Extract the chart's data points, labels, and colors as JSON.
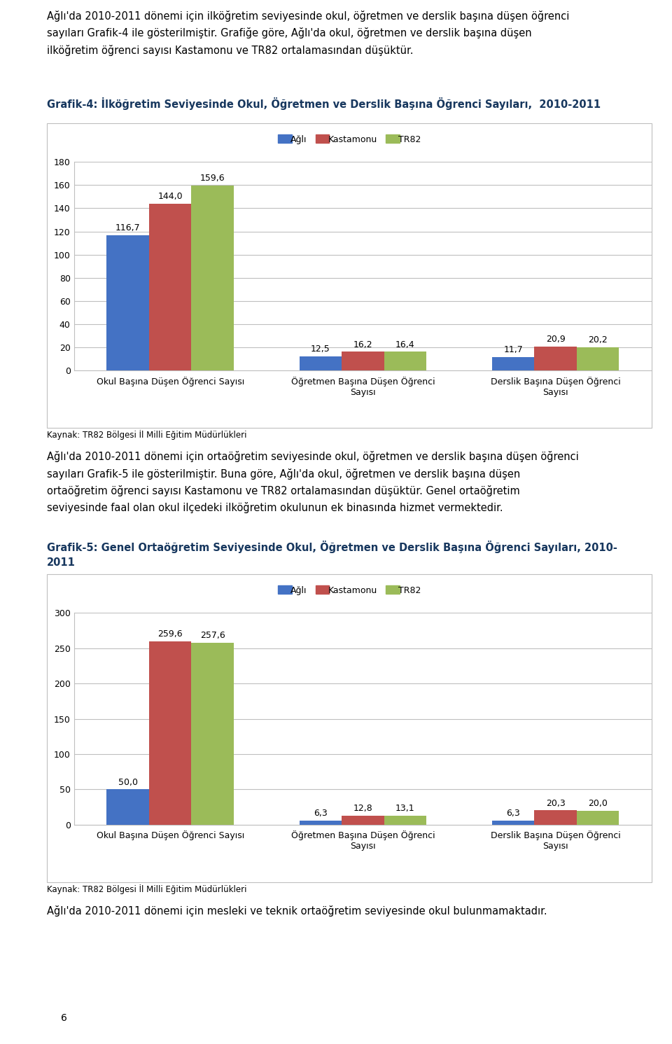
{
  "page_title_lines": "Ağlı'da 2010-2011 dönemi için ilköğretim seviyesinde okul, öğretmen ve derslik başına düşen öğrenci\nsayıları Grafik-4 ile gösterilmiştir. Grafiğe göre, Ağlı'da okul, öğretmen ve derslik başına düşen\nilköğretim öğrenci sayısı Kastamonu ve TR82 ortalamasından düşüktür.",
  "chart1_title": "Grafik-4: İlköğretim Seviyesinde Okul, Öğretmen ve Derslik Başına Öğrenci Sayıları,  2010-2011",
  "chart1_categories": [
    "Okul Başına Düşen Öğrenci Sayısı",
    "Öğretmen Başına Düşen Öğrenci\nSayısı",
    "Derslik Başına Düşen Öğrenci\nSayısı"
  ],
  "chart1_data": {
    "Ağlı": [
      116.7,
      12.5,
      11.7
    ],
    "Kastamonu": [
      144.0,
      16.2,
      20.9
    ],
    "TR82": [
      159.6,
      16.4,
      20.2
    ]
  },
  "chart1_ylim": [
    0,
    180
  ],
  "chart1_yticks": [
    0,
    20,
    40,
    60,
    80,
    100,
    120,
    140,
    160,
    180
  ],
  "chart2_title": "Grafik-5: Genel Ortaöğretim Seviyesinde Okul, Öğretmen ve Derslik Başına Öğrenci Sayıları, 2010-\n2011",
  "chart2_categories": [
    "Okul Başına Düşen Öğrenci Sayısı",
    "Öğretmen Başına Düşen Öğrenci\nSayısı",
    "Derslik Başına Düşen Öğrenci\nSayısı"
  ],
  "chart2_data": {
    "Ağlı": [
      50.0,
      6.3,
      6.3
    ],
    "Kastamonu": [
      259.6,
      12.8,
      20.3
    ],
    "TR82": [
      257.6,
      13.1,
      20.0
    ]
  },
  "chart2_ylim": [
    0,
    300
  ],
  "chart2_yticks": [
    0,
    50,
    100,
    150,
    200,
    250,
    300
  ],
  "mid_text": "Ağlı'da 2010-2011 dönemi için ortaöğretim seviyesinde okul, öğretmen ve derslik başına düşen öğrenci\nsayıları Grafik-5 ile gösterilmiştir. Buna göre, Ağlı'da okul, öğretmen ve derslik başına düşen\nortaöğretim öğrenci sayısı Kastamonu ve TR82 ortalamasından düşüktür. Genel ortaöğretim\nseviyesinde faal olan okul ilçedeki ilköğretim okulunun ek binasında hizmet vermektedir.",
  "bottom_text": "Ağlı'da 2010-2011 dönemi için mesleki ve teknik ortaöğretim seviyesinde okul bulunmamaktadır.",
  "source_text": "Kaynak: TR82 Bölgesi İl Milli Eğitim Müdürlükleri",
  "legend_labels": [
    "Ağlı",
    "Kastamonu",
    "TR82"
  ],
  "bar_colors": [
    "#4472C4",
    "#C0504D",
    "#9BBB59"
  ],
  "title_color": "#17375E",
  "background_color": "#FFFFFF",
  "grid_color": "#BFBFBF",
  "page_number": "6",
  "bar_width": 0.22,
  "label_fontsize": 9,
  "axis_fontsize": 9,
  "title_fontsize": 10.5,
  "legend_fontsize": 9,
  "source_fontsize": 8.5,
  "body_fontsize": 10.5
}
